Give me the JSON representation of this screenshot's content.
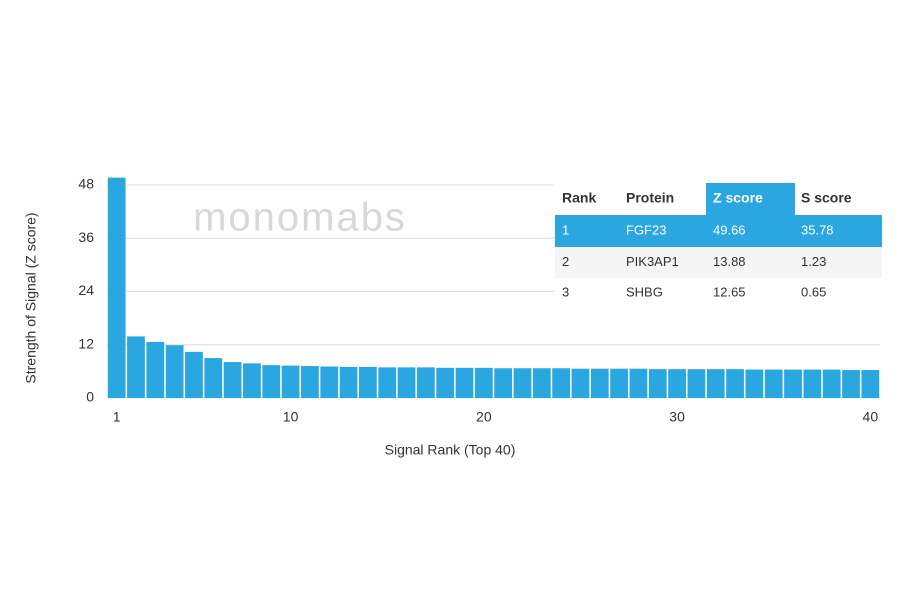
{
  "chart_data": {
    "type": "bar",
    "x_label": "Signal Rank (Top 40)",
    "y_label": "Strength of Signal (Z score)",
    "watermark": "monomabs",
    "x": [
      1,
      2,
      3,
      4,
      5,
      6,
      7,
      8,
      9,
      10,
      11,
      12,
      13,
      14,
      15,
      16,
      17,
      18,
      19,
      20,
      21,
      22,
      23,
      24,
      25,
      26,
      27,
      28,
      29,
      30,
      31,
      32,
      33,
      34,
      35,
      36,
      37,
      38,
      39,
      40
    ],
    "values": [
      49.66,
      13.88,
      12.65,
      11.9,
      10.4,
      9.0,
      8.1,
      7.8,
      7.4,
      7.3,
      7.2,
      7.1,
      7.0,
      7.0,
      6.9,
      6.9,
      6.9,
      6.8,
      6.8,
      6.8,
      6.7,
      6.7,
      6.7,
      6.7,
      6.6,
      6.6,
      6.6,
      6.6,
      6.5,
      6.5,
      6.5,
      6.5,
      6.5,
      6.4,
      6.4,
      6.4,
      6.4,
      6.4,
      6.3,
      6.3
    ],
    "color": "#2aa7e0",
    "xlim": [
      0.5,
      40.5
    ],
    "xticks": [
      1,
      10,
      20,
      30,
      40
    ],
    "ylim": [
      0,
      48
    ],
    "yticks": [
      0,
      12,
      24,
      36,
      48
    ],
    "grid": true
  },
  "table": {
    "header": [
      "Rank",
      "Protein",
      "Z score",
      "S score"
    ],
    "rows": [
      [
        1,
        "FGF23",
        49.66,
        35.78
      ],
      [
        2,
        "PIK3AP1",
        13.88,
        1.23
      ],
      [
        3,
        "SHBG",
        12.65,
        0.65
      ]
    ]
  }
}
